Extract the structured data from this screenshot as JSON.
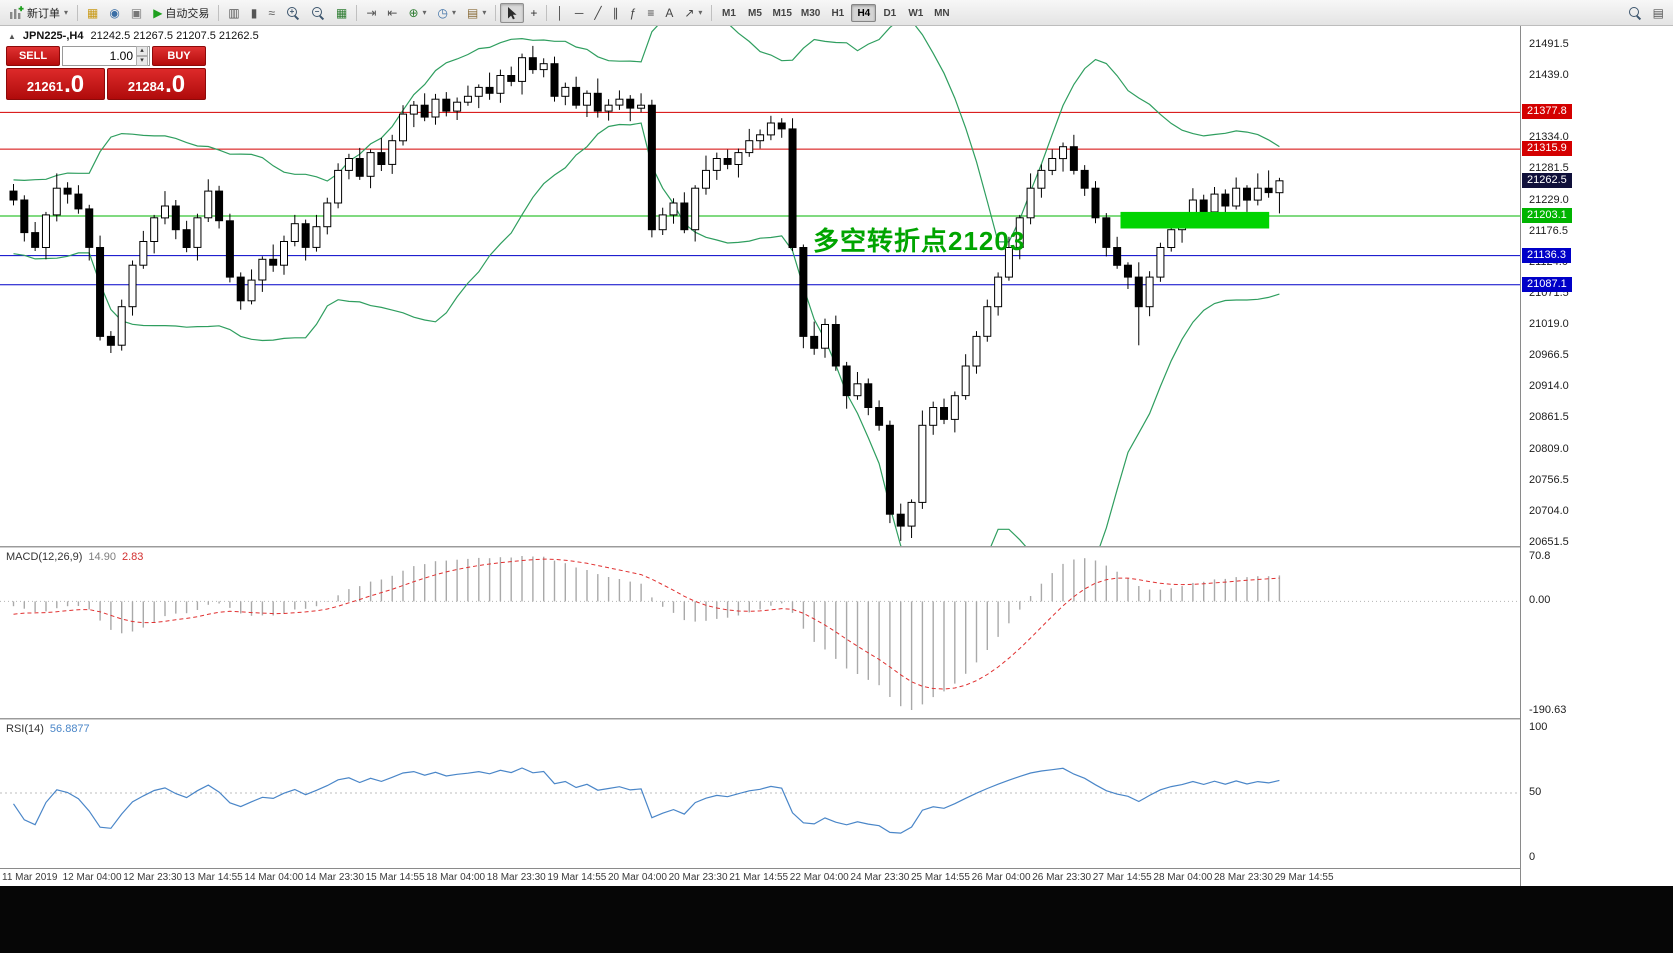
{
  "toolbar": {
    "items": [
      {
        "name": "new-order-button",
        "shape": "new-order",
        "label": "新订单",
        "dropdown": true
      },
      {
        "type": "sep"
      },
      {
        "name": "profiles-button",
        "glyph": "▦",
        "color": "#c99a17"
      },
      {
        "name": "market-watch-button",
        "glyph": "◉",
        "color": "#3a6ea5"
      },
      {
        "name": "terminal-button",
        "glyph": "▣",
        "color": "#777777"
      },
      {
        "name": "autotrading-button",
        "glyph": "▶",
        "color": "#1fa01f",
        "label": "自动交易"
      },
      {
        "type": "sep"
      },
      {
        "name": "bar-chart-button",
        "glyph": "▥",
        "color": "#555555"
      },
      {
        "name": "candlestick-chart-button",
        "glyph": "▮",
        "color": "#555555"
      },
      {
        "name": "line-chart-button",
        "glyph": "≈",
        "color": "#555555"
      },
      {
        "name": "zoom-in-button",
        "shape": "mag-plus"
      },
      {
        "name": "zoom-out-button",
        "shape": "mag-minus"
      },
      {
        "name": "tile-windows-button",
        "glyph": "▦",
        "color": "#2e7d32"
      },
      {
        "type": "sep"
      },
      {
        "name": "auto-scroll-button",
        "glyph": "⇥",
        "color": "#555555"
      },
      {
        "name": "chart-shift-button",
        "glyph": "⇤",
        "color": "#555555"
      },
      {
        "name": "indicators-button",
        "glyph": "⊕",
        "color": "#2e7d32",
        "dropdown": true
      },
      {
        "name": "periods-button",
        "glyph": "◷",
        "color": "#3a6ea5",
        "dropdown": true
      },
      {
        "name": "templates-button",
        "glyph": "▤",
        "color": "#8a6d3b",
        "dropdown": true
      },
      {
        "type": "sep"
      },
      {
        "name": "cursor-button",
        "shape": "cursor",
        "active": true
      },
      {
        "name": "crosshair-button",
        "glyph": "+",
        "color": "#333333"
      },
      {
        "type": "sep"
      },
      {
        "name": "vertical-line-button",
        "glyph": "│",
        "color": "#444444"
      },
      {
        "name": "horizontal-line-button",
        "glyph": "─",
        "color": "#444444"
      },
      {
        "name": "trendline-button",
        "glyph": "╱",
        "color": "#444444"
      },
      {
        "name": "channel-button",
        "glyph": "∥",
        "color": "#444444"
      },
      {
        "name": "fibonacci-button",
        "glyph": "ƒ",
        "color": "#444444"
      },
      {
        "name": "cycle-lines-button",
        "glyph": "≡",
        "color": "#444444"
      },
      {
        "name": "text-button",
        "glyph": "A",
        "color": "#444444"
      },
      {
        "name": "arrows-button",
        "glyph": "↗",
        "color": "#444444",
        "dropdown": true
      },
      {
        "type": "sep"
      },
      {
        "type": "tf"
      },
      {
        "type": "spacer"
      },
      {
        "name": "search-button",
        "shape": "mag"
      },
      {
        "name": "objects-list-button",
        "glyph": "▤",
        "color": "#555555"
      }
    ],
    "timeframes": {
      "items": [
        "M1",
        "M5",
        "M15",
        "M30",
        "H1",
        "H4",
        "D1",
        "W1",
        "MN"
      ],
      "active": "H4"
    }
  },
  "chart": {
    "collapse_marker": "▲",
    "symbol_period": "JPN225-,H4",
    "ohlc": "21242.5 21267.5 21207.5 21262.5"
  },
  "trade_panel": {
    "sell_label": "SELL",
    "buy_label": "BUY",
    "volume": "1.00",
    "sell_price": "21261",
    "sell_price_big": ".0",
    "buy_price": "21284",
    "buy_price_big": ".0"
  },
  "chart_data": {
    "type": "candlestick",
    "symbol": "JPN225-",
    "timeframe": "H4",
    "price_range": [
      20651.5,
      21491.5
    ],
    "price_ticks": [
      21491.5,
      21439.0,
      21334.0,
      21281.5,
      21229.0,
      21176.5,
      21124.0,
      21071.5,
      21019.0,
      20966.5,
      20914.0,
      20861.5,
      20809.0,
      20756.5,
      20704.0,
      20651.5
    ],
    "time_labels": [
      "11 Mar 2019",
      "12 Mar 04:00",
      "12 Mar 23:30",
      "13 Mar 14:55",
      "14 Mar 04:00",
      "14 Mar 23:30",
      "15 Mar 14:55",
      "18 Mar 04:00",
      "18 Mar 23:30",
      "19 Mar 14:55",
      "20 Mar 04:00",
      "20 Mar 23:30",
      "21 Mar 14:55",
      "22 Mar 04:00",
      "24 Mar 23:30",
      "25 Mar 14:55",
      "26 Mar 04:00",
      "26 Mar 23:30",
      "27 Mar 14:55",
      "28 Mar 04:00",
      "28 Mar 23:30",
      "29 Mar 14:55"
    ],
    "warmup_closes": [
      21350,
      21340,
      21320,
      21300,
      21290,
      21280,
      21270,
      21250,
      21240,
      21230,
      21220,
      21210,
      21200,
      21190,
      21180,
      21170,
      21160,
      21150,
      21160,
      21170,
      21180,
      21190,
      21200,
      21210,
      21220,
      21230,
      21240,
      21248,
      21250,
      21246
    ],
    "candles": [
      [
        21245,
        21257,
        21221,
        21230
      ],
      [
        21230,
        21238,
        21160,
        21175
      ],
      [
        21175,
        21193,
        21144,
        21150
      ],
      [
        21150,
        21210,
        21130,
        21205
      ],
      [
        21205,
        21275,
        21194,
        21250
      ],
      [
        21250,
        21260,
        21224,
        21240
      ],
      [
        21240,
        21255,
        21207,
        21215
      ],
      [
        21215,
        21222,
        21128,
        21150
      ],
      [
        21150,
        21170,
        20993,
        21000
      ],
      [
        21000,
        21009,
        20972,
        20985
      ],
      [
        20985,
        21062,
        20976,
        21050
      ],
      [
        21050,
        21128,
        21035,
        21120
      ],
      [
        21120,
        21178,
        21114,
        21160
      ],
      [
        21160,
        21205,
        21140,
        21200
      ],
      [
        21200,
        21245,
        21189,
        21220
      ],
      [
        21220,
        21230,
        21164,
        21180
      ],
      [
        21180,
        21195,
        21142,
        21150
      ],
      [
        21150,
        21207,
        21128,
        21200
      ],
      [
        21200,
        21265,
        21193,
        21245
      ],
      [
        21245,
        21254,
        21182,
        21195
      ],
      [
        21195,
        21207,
        21091,
        21100
      ],
      [
        21100,
        21108,
        21045,
        21060
      ],
      [
        21060,
        21113,
        21054,
        21095
      ],
      [
        21095,
        21135,
        21075,
        21130
      ],
      [
        21130,
        21155,
        21109,
        21120
      ],
      [
        21120,
        21170,
        21104,
        21160
      ],
      [
        21160,
        21205,
        21152,
        21190
      ],
      [
        21190,
        21197,
        21128,
        21150
      ],
      [
        21150,
        21205,
        21143,
        21185
      ],
      [
        21185,
        21234,
        21172,
        21225
      ],
      [
        21225,
        21292,
        21216,
        21280
      ],
      [
        21280,
        21308,
        21265,
        21300
      ],
      [
        21300,
        21318,
        21264,
        21270
      ],
      [
        21270,
        21315,
        21250,
        21310
      ],
      [
        21310,
        21335,
        21279,
        21290
      ],
      [
        21290,
        21340,
        21274,
        21330
      ],
      [
        21330,
        21390,
        21322,
        21375
      ],
      [
        21375,
        21397,
        21353,
        21390
      ],
      [
        21390,
        21410,
        21363,
        21370
      ],
      [
        21370,
        21409,
        21357,
        21400
      ],
      [
        21400,
        21412,
        21371,
        21380
      ],
      [
        21380,
        21403,
        21365,
        21395
      ],
      [
        21395,
        21423,
        21389,
        21405
      ],
      [
        21405,
        21425,
        21385,
        21420
      ],
      [
        21420,
        21445,
        21399,
        21410
      ],
      [
        21410,
        21450,
        21394,
        21440
      ],
      [
        21440,
        21455,
        21422,
        21430
      ],
      [
        21430,
        21477,
        21408,
        21470
      ],
      [
        21470,
        21490,
        21443,
        21450
      ],
      [
        21450,
        21469,
        21437,
        21460
      ],
      [
        21460,
        21472,
        21396,
        21405
      ],
      [
        21405,
        21428,
        21390,
        21420
      ],
      [
        21420,
        21438,
        21384,
        21390
      ],
      [
        21390,
        21415,
        21370,
        21410
      ],
      [
        21410,
        21435,
        21369,
        21380
      ],
      [
        21380,
        21400,
        21364,
        21390
      ],
      [
        21390,
        21415,
        21382,
        21400
      ],
      [
        21400,
        21407,
        21363,
        21385
      ],
      [
        21385,
        21410,
        21378,
        21390
      ],
      [
        21390,
        21399,
        21167,
        21180
      ],
      [
        21180,
        21217,
        21171,
        21205
      ],
      [
        21205,
        21233,
        21190,
        21225
      ],
      [
        21225,
        21243,
        21174,
        21180
      ],
      [
        21180,
        21255,
        21160,
        21250
      ],
      [
        21250,
        21305,
        21239,
        21280
      ],
      [
        21280,
        21310,
        21264,
        21300
      ],
      [
        21300,
        21315,
        21282,
        21290
      ],
      [
        21290,
        21317,
        21268,
        21310
      ],
      [
        21310,
        21350,
        21303,
        21330
      ],
      [
        21330,
        21349,
        21317,
        21340
      ],
      [
        21340,
        21372,
        21331,
        21360
      ],
      [
        21360,
        21368,
        21335,
        21350
      ],
      [
        21350,
        21368,
        21144,
        21150
      ],
      [
        21150,
        21155,
        20980,
        21000
      ],
      [
        21000,
        21025,
        20969,
        20980
      ],
      [
        20980,
        21030,
        20964,
        21020
      ],
      [
        21020,
        21035,
        20942,
        20950
      ],
      [
        20950,
        20957,
        20878,
        20900
      ],
      [
        20900,
        20940,
        20893,
        20920
      ],
      [
        20920,
        20929,
        20867,
        20880
      ],
      [
        20880,
        20892,
        20841,
        20850
      ],
      [
        20850,
        20858,
        20685,
        20700
      ],
      [
        20700,
        20718,
        20655,
        20680
      ],
      [
        20680,
        20725,
        20660,
        20720
      ],
      [
        20720,
        20875,
        20709,
        20850
      ],
      [
        20850,
        20890,
        20834,
        20880
      ],
      [
        20880,
        20895,
        20852,
        20860
      ],
      [
        20860,
        20907,
        20838,
        20900
      ],
      [
        20900,
        20970,
        20893,
        20950
      ],
      [
        20950,
        21009,
        20937,
        21000
      ],
      [
        21000,
        21062,
        20991,
        21050
      ],
      [
        21050,
        21108,
        21035,
        21100
      ],
      [
        21100,
        21168,
        21094,
        21150
      ],
      [
        21150,
        21205,
        21130,
        21200
      ],
      [
        21200,
        21275,
        21189,
        21250
      ],
      [
        21250,
        21290,
        21234,
        21280
      ],
      [
        21280,
        21315,
        21272,
        21300
      ],
      [
        21300,
        21327,
        21278,
        21320
      ],
      [
        21320,
        21340,
        21273,
        21280
      ],
      [
        21280,
        21289,
        21237,
        21250
      ],
      [
        21250,
        21262,
        21191,
        21200
      ],
      [
        21200,
        21208,
        21135,
        21150
      ],
      [
        21150,
        21168,
        21114,
        21120
      ],
      [
        21120,
        21125,
        21080,
        21100
      ],
      [
        21100,
        21125,
        20985,
        21050
      ],
      [
        21050,
        21110,
        21034,
        21100
      ],
      [
        21100,
        21158,
        21092,
        21150
      ],
      [
        21150,
        21202,
        21143,
        21180
      ],
      [
        21180,
        21207,
        21158,
        21200
      ],
      [
        21200,
        21250,
        21193,
        21230
      ],
      [
        21230,
        21239,
        21197,
        21210
      ],
      [
        21210,
        21252,
        21195,
        21240
      ],
      [
        21240,
        21248,
        21205,
        21220
      ],
      [
        21220,
        21268,
        21214,
        21250
      ],
      [
        21250,
        21255,
        21210,
        21230
      ],
      [
        21230,
        21275,
        21221,
        21250
      ],
      [
        21250,
        21280,
        21234,
        21242.5
      ],
      [
        21242.5,
        21267.5,
        21207.5,
        21262.5
      ]
    ],
    "bollinger": {
      "period": 20,
      "deviation": 2,
      "color": "#2f9e5f"
    },
    "hlines": [
      {
        "price": 21377.8,
        "label": "21377.8",
        "color": "#d40000"
      },
      {
        "price": 21315.9,
        "label": "21315.9",
        "color": "#d40000"
      },
      {
        "price": 21203.1,
        "label": "21203.1",
        "color": "#00b400"
      },
      {
        "price": 21136.3,
        "label": "21136.3",
        "color": "#0000c8"
      },
      {
        "price": 21087.1,
        "label": "21087.1",
        "color": "#0000c8"
      }
    ],
    "current_price": {
      "value": 21262.5,
      "label": "21262.5",
      "color": "#10103a"
    },
    "highlight_rect": {
      "start_index": 103,
      "end_index": 116,
      "price_top": 21210,
      "price_bottom": 21182,
      "color": "#00d400"
    },
    "annotation": {
      "text": "多空转折点21203",
      "color": "#00a400"
    },
    "macd": {
      "label": "MACD(12,26,9)",
      "value_main": "14.90",
      "value_signal": "2.83",
      "params": {
        "fast": 12,
        "slow": 26,
        "signal": 9
      },
      "axis": {
        "top": "70.8",
        "zero": "0.00",
        "bottom": "-190.63"
      },
      "histogram_color": "#a9a9a9",
      "signal_color": "#e03030"
    },
    "rsi": {
      "label": "RSI(14)",
      "value": "56.8877",
      "period": 14,
      "axis": {
        "top": "100",
        "mid": "50",
        "bottom": "0"
      },
      "line_color": "#4a86c8"
    }
  }
}
